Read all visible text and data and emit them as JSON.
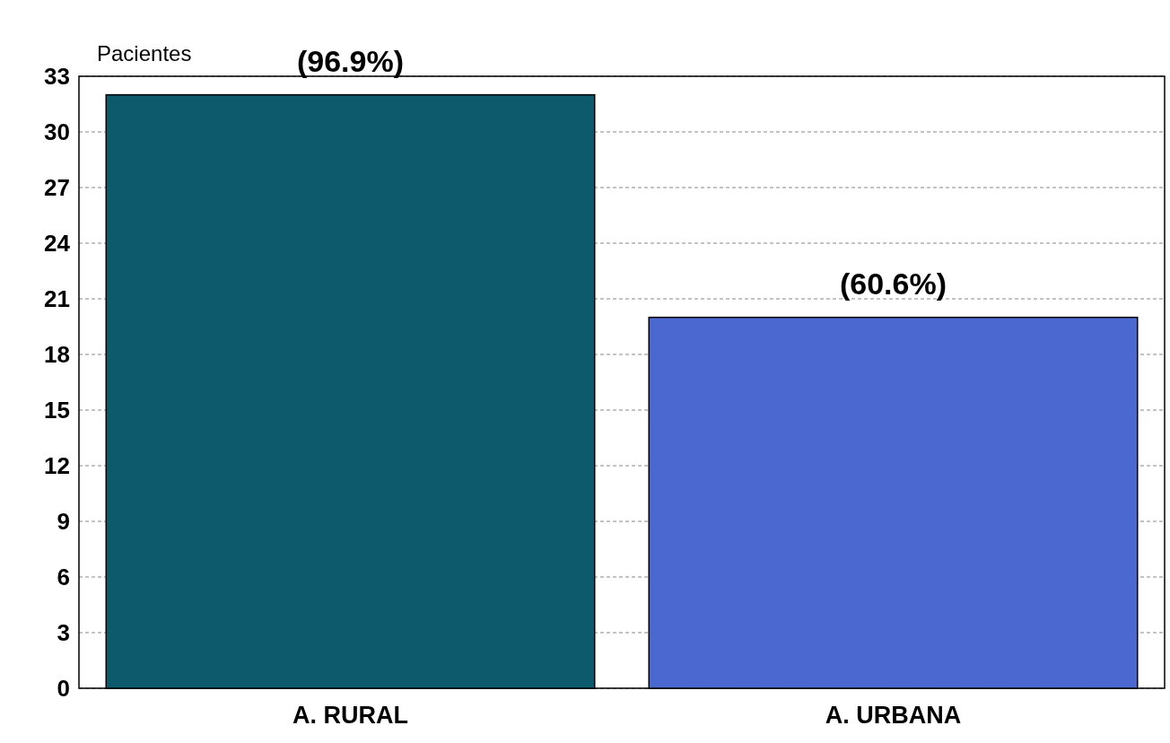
{
  "chart_data": {
    "type": "bar",
    "ylabel": "Pacientes",
    "categories": [
      "A. RURAL",
      "A. URBANA"
    ],
    "values": [
      32,
      20
    ],
    "colors": [
      "#0d5a6c",
      "#4a68d0"
    ],
    "annotations": [
      {
        "text": "(96.9%)",
        "x": "A. RURAL",
        "y": 32
      },
      {
        "text": "(60.6%)",
        "x": "A. URBANA",
        "y": 20
      }
    ],
    "ylim": [
      0,
      33
    ],
    "yticks": [
      0,
      3,
      6,
      9,
      12,
      15,
      18,
      21,
      24,
      27,
      30,
      33
    ],
    "grid": "y"
  }
}
